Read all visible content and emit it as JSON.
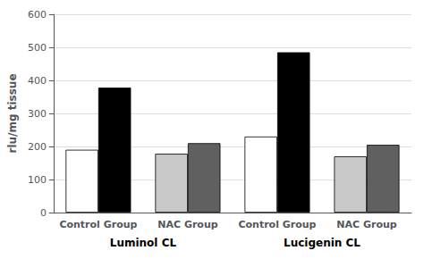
{
  "chart_data": {
    "type": "bar",
    "categories": [
      "Control Group",
      "NAC Group",
      "Control Group",
      "NAC Group"
    ],
    "series": [
      {
        "colors": [
          "white",
          "#c8c8c8",
          "white",
          "#c8c8c8"
        ],
        "values": [
          190,
          178,
          230,
          170
        ]
      },
      {
        "colors": [
          "black",
          "#606060",
          "black",
          "#606060"
        ],
        "values": [
          378,
          210,
          485,
          205
        ]
      }
    ],
    "annotations": [
      "Luminol CL",
      "Lucigenin CL"
    ],
    "ylabel": "rlu/mg tissue",
    "ylim": [
      0,
      600
    ],
    "yticks": [
      0,
      100,
      200,
      300,
      400,
      500,
      600
    ],
    "grid": true
  }
}
